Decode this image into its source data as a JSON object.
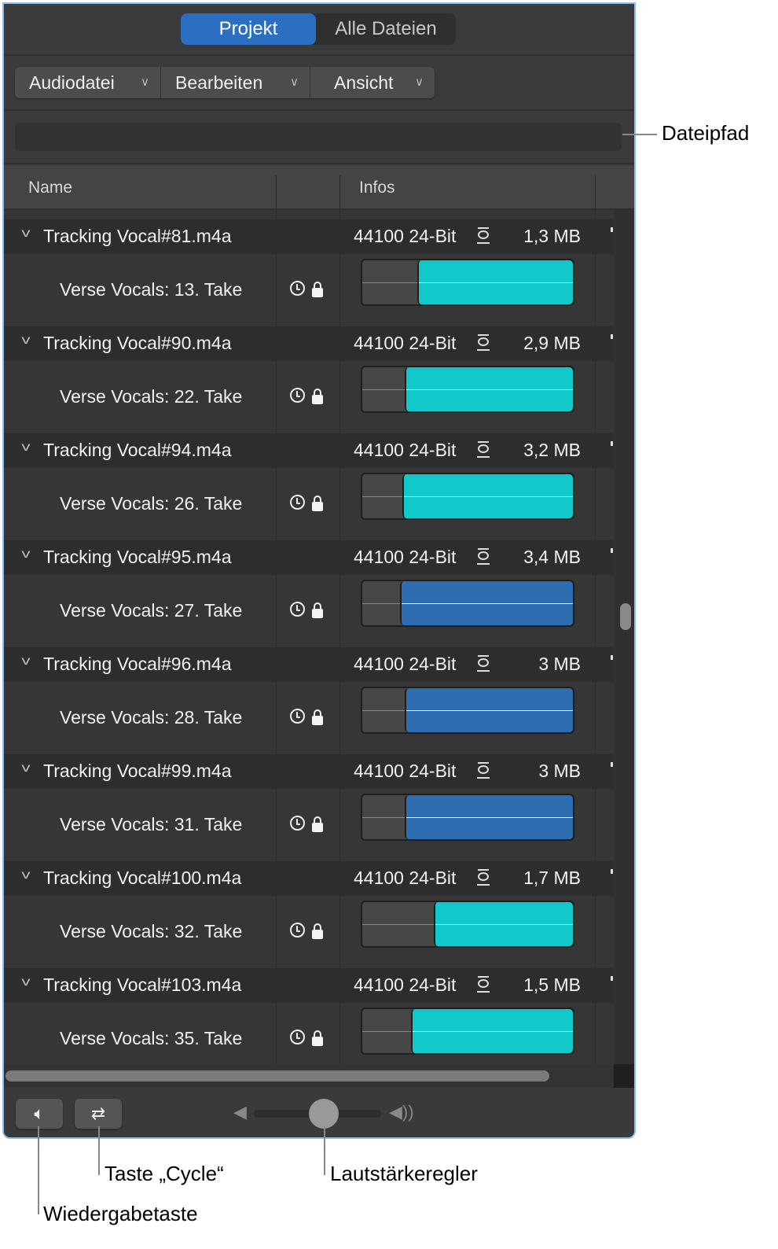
{
  "tabs": {
    "project": "Projekt",
    "all_files": "Alle Dateien"
  },
  "menus": [
    {
      "label": "Audiodatei"
    },
    {
      "label": "Bearbeiten"
    },
    {
      "label": "Ansicht"
    }
  ],
  "path_field": {
    "value": ""
  },
  "columns": {
    "name": "Name",
    "info": "Infos"
  },
  "colors": {
    "cyan": "#12c9c9",
    "blue": "#2f6db3",
    "accent": "#2a6fc2"
  },
  "rows": [
    {
      "file": "Tracking Vocal#81.m4a",
      "info": "44100 24-Bit",
      "size": "1,3 MB",
      "take": "Verse Vocals: 13. Take",
      "region_start": 0.26,
      "color": "cyan"
    },
    {
      "file": "Tracking Vocal#90.m4a",
      "info": "44100 24-Bit",
      "size": "2,9 MB",
      "take": "Verse Vocals: 22. Take",
      "region_start": 0.2,
      "color": "cyan"
    },
    {
      "file": "Tracking Vocal#94.m4a",
      "info": "44100 24-Bit",
      "size": "3,2 MB",
      "take": "Verse Vocals: 26. Take",
      "region_start": 0.19,
      "color": "cyan"
    },
    {
      "file": "Tracking Vocal#95.m4a",
      "info": "44100 24-Bit",
      "size": "3,4 MB",
      "take": "Verse Vocals: 27. Take",
      "region_start": 0.18,
      "color": "blue"
    },
    {
      "file": "Tracking Vocal#96.m4a",
      "info": "44100 24-Bit",
      "size": "3 MB",
      "take": "Verse Vocals: 28. Take",
      "region_start": 0.2,
      "color": "blue"
    },
    {
      "file": "Tracking Vocal#99.m4a",
      "info": "44100 24-Bit",
      "size": "3 MB",
      "take": "Verse Vocals: 31. Take",
      "region_start": 0.2,
      "color": "blue"
    },
    {
      "file": "Tracking Vocal#100.m4a",
      "info": "44100 24-Bit",
      "size": "1,7 MB",
      "take": "Verse Vocals: 32. Take",
      "region_start": 0.34,
      "color": "cyan"
    },
    {
      "file": "Tracking Vocal#103.m4a",
      "info": "44100 24-Bit",
      "size": "1,5 MB",
      "take": "Verse Vocals: 35. Take",
      "region_start": 0.23,
      "color": "cyan"
    }
  ],
  "footer": {
    "play_icon": "speaker-play-icon",
    "cycle_icon": "cycle-icon",
    "volume": 0.55
  },
  "callouts": {
    "path": "Dateipfad",
    "cycle": "Taste „Cycle“",
    "volume": "Lautstärkeregler",
    "play": "Wiedergabetaste"
  }
}
